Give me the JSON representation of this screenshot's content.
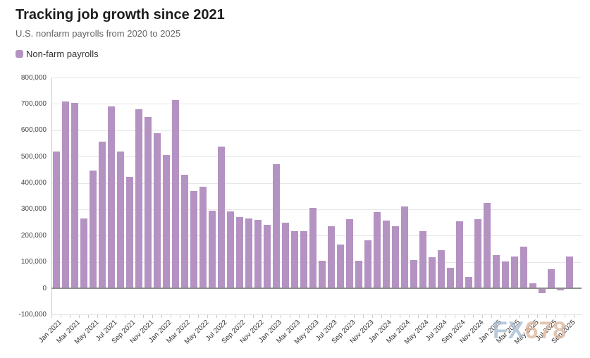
{
  "header": {
    "title": "Tracking job growth since 2021",
    "subtitle": "U.S. nonfarm payrolls from 2020 to 2025"
  },
  "legend": {
    "label": "Non-farm payrolls",
    "swatch_color": "#b492c2"
  },
  "watermark": {
    "part1": "FX",
    "part2": "678"
  },
  "colors": {
    "bar": "#b492c2",
    "grid": "#e6e6e6",
    "zero_line": "#8f8f8f",
    "axis_line": "#c9c9c9",
    "ylabel_text": "#424242",
    "xlabel_text": "#333333"
  },
  "chart_data": {
    "type": "bar",
    "title": "Tracking job growth since 2021",
    "subtitle": "U.S. nonfarm payrolls from 2020 to 2025",
    "xlabel": "",
    "ylabel": "",
    "grid": true,
    "legend_position": "top-left",
    "ylim": [
      -100000,
      800000
    ],
    "ytick_step": 100000,
    "ytick_labels": [
      "800,000",
      "700,000",
      "600,000",
      "500,000",
      "400,000",
      "300,000",
      "200,000",
      "100,000",
      "0",
      "-100,000"
    ],
    "xtick_every": 2,
    "categories": [
      "Jan 2021",
      "Feb 2021",
      "Mar 2021",
      "Apr 2021",
      "May 2021",
      "Jun 2021",
      "Jul 2021",
      "Aug 2021",
      "Sep 2021",
      "Oct 2021",
      "Nov 2021",
      "Dec 2021",
      "Jan 2022",
      "Feb 2022",
      "Mar 2022",
      "Apr 2022",
      "May 2022",
      "Jun 2022",
      "Jul 2022",
      "Aug 2022",
      "Sep 2022",
      "Oct 2022",
      "Nov 2022",
      "Dec 2022",
      "Jan 2023",
      "Feb 2023",
      "Mar 2023",
      "Apr 2023",
      "May 2023",
      "Jun 2023",
      "Jul 2023",
      "Aug 2023",
      "Sep 2023",
      "Oct 2023",
      "Nov 2023",
      "Dec 2023",
      "Jan 2024",
      "Feb 2024",
      "Mar 2024",
      "Apr 2024",
      "May 2024",
      "Jun 2024",
      "Jul 2024",
      "Aug 2024",
      "Sep 2024",
      "Oct 2024",
      "Nov 2024",
      "Dec 2024",
      "Jan 2025",
      "Feb 2025",
      "Mar 2025",
      "Apr 2025",
      "May 2025",
      "Jun 2025",
      "Jul 2025",
      "Aug 2025",
      "Sep 2025"
    ],
    "series": [
      {
        "name": "Non-farm payrolls",
        "values": [
          520000,
          710000,
          705000,
          266000,
          448000,
          557000,
          690000,
          520000,
          424000,
          680000,
          650000,
          588000,
          505000,
          715000,
          430000,
          368000,
          386000,
          293000,
          537000,
          292000,
          269000,
          264000,
          260000,
          240000,
          472000,
          248000,
          217000,
          217000,
          306000,
          105000,
          236000,
          165000,
          262000,
          105000,
          182000,
          290000,
          256000,
          236000,
          310000,
          108000,
          216000,
          118000,
          144000,
          78000,
          255000,
          44000,
          261000,
          323000,
          125000,
          102000,
          120000,
          158000,
          20000,
          -15000,
          72000,
          -5000,
          120000
        ]
      }
    ]
  }
}
